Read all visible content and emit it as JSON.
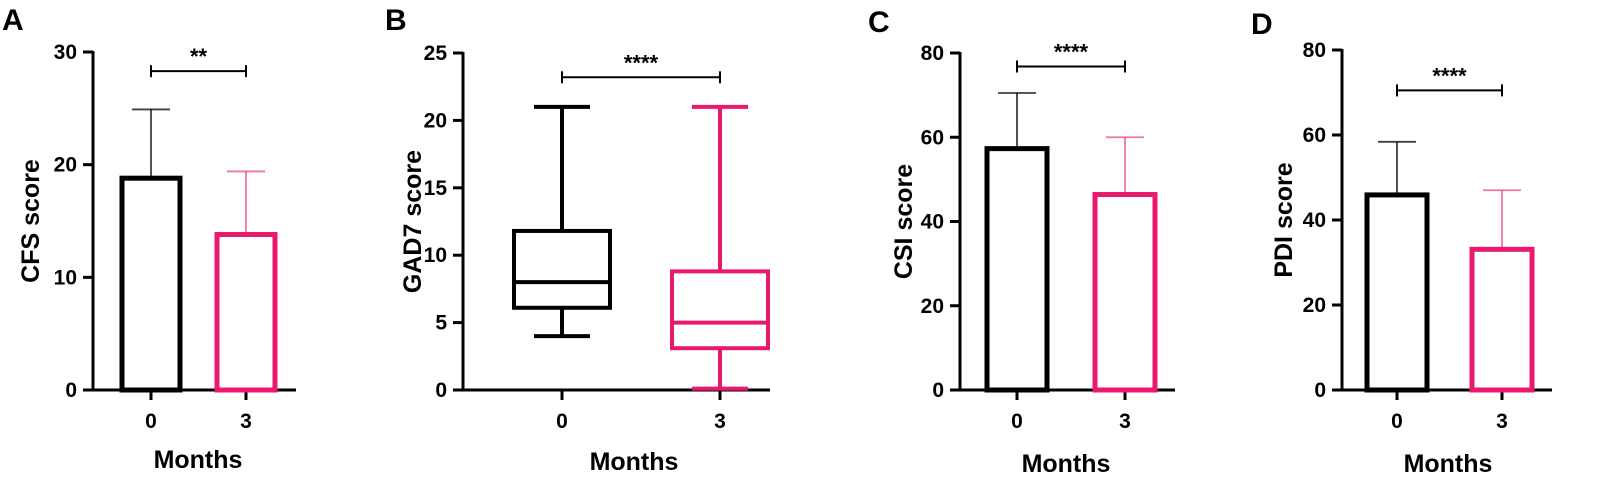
{
  "colors": {
    "group0": "#000000",
    "group3": "#e8196e"
  },
  "chart_data": [
    {
      "panel": "A",
      "type": "bar",
      "xlabel": "Months",
      "ylabel": "CFS score",
      "categories": [
        "0",
        "3"
      ],
      "values": [
        18.8,
        13.8
      ],
      "error_upper": [
        24.9,
        19.4
      ],
      "ylim": [
        0,
        30
      ],
      "yticks": [
        0,
        10,
        20,
        30
      ],
      "significance": "**",
      "bracket_y": 28.3
    },
    {
      "panel": "B",
      "type": "box",
      "xlabel": "Months",
      "ylabel": "GAD7 score",
      "categories": [
        "0",
        "3"
      ],
      "boxes": [
        {
          "min": 4,
          "q1": 6.1,
          "median": 8,
          "q3": 11.8,
          "max": 21
        },
        {
          "min": 0.1,
          "q1": 3.1,
          "median": 5,
          "q3": 8.8,
          "max": 21
        }
      ],
      "ylim": [
        0,
        25
      ],
      "yticks": [
        0,
        5,
        10,
        15,
        20,
        25
      ],
      "significance": "****",
      "bracket_y": 23.2
    },
    {
      "panel": "C",
      "type": "bar",
      "xlabel": "Months",
      "ylabel": "CSI score",
      "categories": [
        "0",
        "3"
      ],
      "values": [
        57.3,
        46.4
      ],
      "error_upper": [
        70.5,
        60
      ],
      "ylim": [
        0,
        80
      ],
      "yticks": [
        0,
        20,
        40,
        60,
        80
      ],
      "significance": "****",
      "bracket_y": 76.8
    },
    {
      "panel": "D",
      "type": "bar",
      "xlabel": "Months",
      "ylabel": "PDI score",
      "categories": [
        "0",
        "3"
      ],
      "values": [
        45.9,
        33.1
      ],
      "error_upper": [
        58.4,
        47
      ],
      "ylim": [
        0,
        80
      ],
      "yticks": [
        0,
        20,
        40,
        60,
        80
      ],
      "significance": "****",
      "bracket_y": 70.5
    }
  ]
}
